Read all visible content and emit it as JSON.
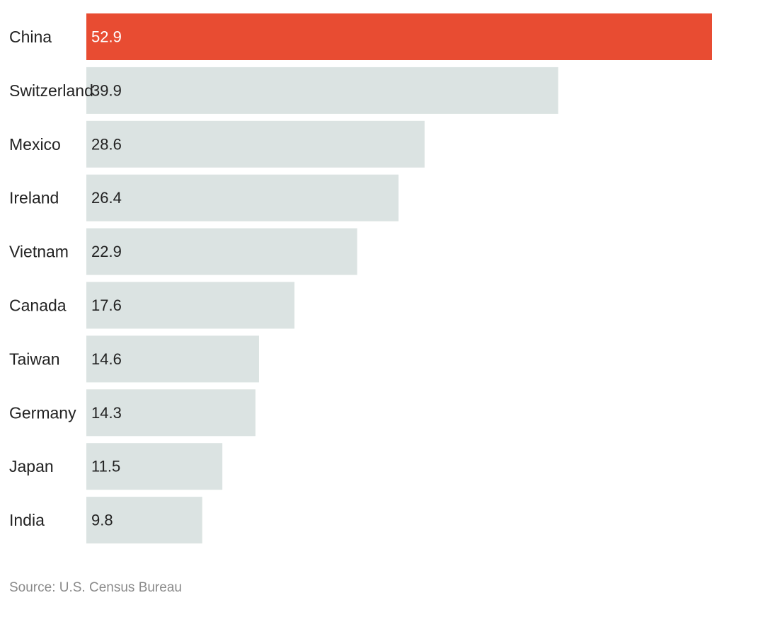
{
  "chart_data": {
    "type": "bar",
    "orientation": "horizontal",
    "categories": [
      "China",
      "Switzerland",
      "Mexico",
      "Ireland",
      "Vietnam",
      "Canada",
      "Taiwan",
      "Germany",
      "Japan",
      "India"
    ],
    "values": [
      52.9,
      39.9,
      28.6,
      26.4,
      22.9,
      17.6,
      14.6,
      14.3,
      11.5,
      9.8
    ],
    "value_labels": [
      "52.9",
      "39.9",
      "28.6",
      "26.4",
      "22.9",
      "17.6",
      "14.6",
      "14.3",
      "11.5",
      "9.8"
    ],
    "highlight_index": 0,
    "xlim": [
      0,
      52.9
    ],
    "grid": false,
    "legend": "none"
  },
  "colors": {
    "highlight_bar": "#e84c32",
    "default_bar": "#dbe3e2",
    "highlight_text": "#ffffff",
    "default_text": "#222222"
  },
  "source": "Source: U.S. Census Bureau"
}
